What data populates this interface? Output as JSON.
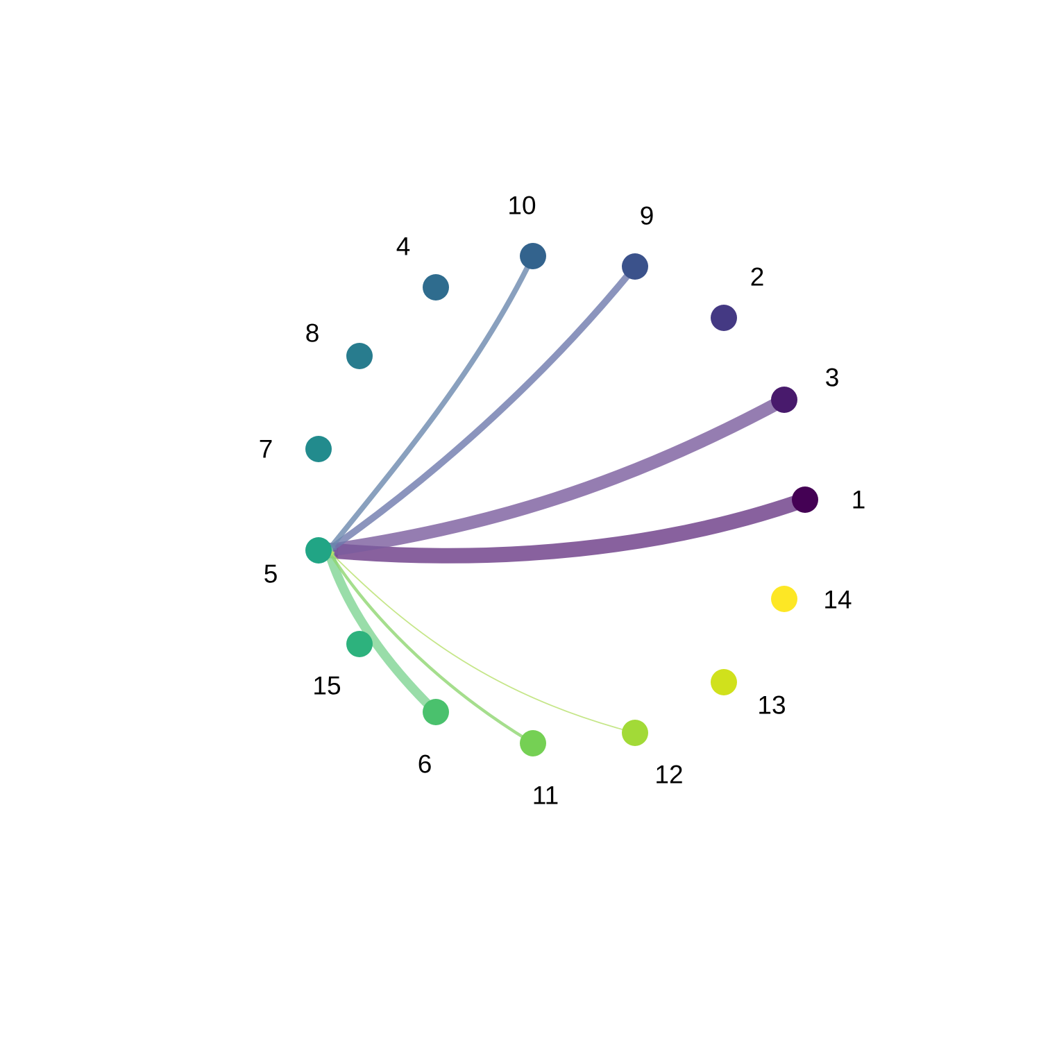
{
  "nodes": [
    {
      "id": "1",
      "label": "1",
      "color": "#440154"
    },
    {
      "id": "2",
      "label": "2",
      "color": "#443983"
    },
    {
      "id": "3",
      "label": "3",
      "color": "#481A6C"
    },
    {
      "id": "4",
      "label": "4",
      "color": "#2F6C8E"
    },
    {
      "id": "5",
      "label": "5",
      "color": "#21A585"
    },
    {
      "id": "6",
      "label": "6",
      "color": "#4AC16D"
    },
    {
      "id": "7",
      "label": "7",
      "color": "#228B8D"
    },
    {
      "id": "8",
      "label": "8",
      "color": "#287C8E"
    },
    {
      "id": "9",
      "label": "9",
      "color": "#3B528B"
    },
    {
      "id": "10",
      "label": "10",
      "color": "#33638D"
    },
    {
      "id": "11",
      "label": "11",
      "color": "#75D054"
    },
    {
      "id": "12",
      "label": "12",
      "color": "#A2DA37"
    },
    {
      "id": "13",
      "label": "13",
      "color": "#D0E11C"
    },
    {
      "id": "14",
      "label": "14",
      "color": "#FDE725"
    },
    {
      "id": "15",
      "label": "15",
      "color": "#2DB27D"
    }
  ],
  "edges": [
    {
      "source": "1",
      "target": "5",
      "weight": 1.0,
      "color": "#6A3A86"
    },
    {
      "source": "3",
      "target": "5",
      "weight": 0.85,
      "color": "#7A5C9E"
    },
    {
      "source": "9",
      "target": "5",
      "weight": 0.45,
      "color": "#6E79AC"
    },
    {
      "source": "10",
      "target": "5",
      "weight": 0.35,
      "color": "#6C88AE"
    },
    {
      "source": "6",
      "target": "5",
      "weight": 0.6,
      "color": "#7FD493"
    },
    {
      "source": "11",
      "target": "5",
      "weight": 0.2,
      "color": "#8ED670"
    },
    {
      "source": "12",
      "target": "5",
      "weight": 0.08,
      "color": "#B7E06A"
    }
  ]
}
